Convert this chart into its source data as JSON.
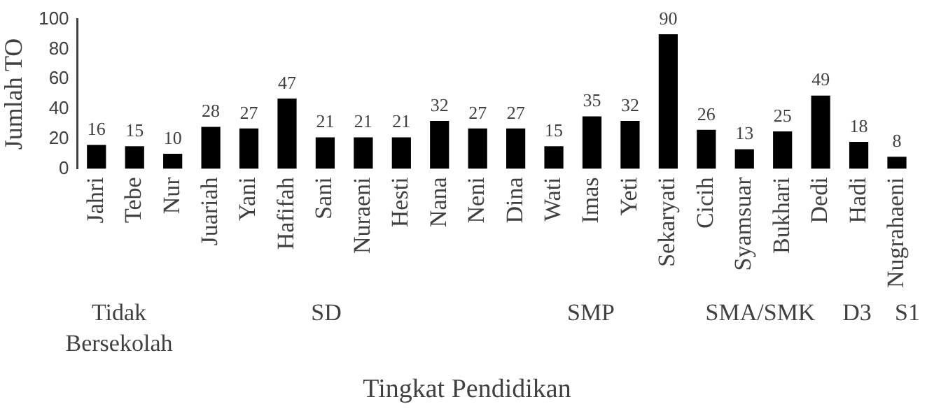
{
  "chart_data": {
    "type": "bar",
    "xlabel": "Tingkat Pendidikan",
    "ylabel": "Jumlah TO",
    "categories": [
      "Jahri",
      "Tebe",
      "Nur",
      "Juariah",
      "Yani",
      "Hafifah",
      "Sani",
      "Nuraeni",
      "Hesti",
      "Nana",
      "Neni",
      "Dina",
      "Wati",
      "Imas",
      "Yeti",
      "Sekaryati",
      "Cicih",
      "Syamsuar",
      "Bukhari",
      "Dedi",
      "Hadi",
      "Nugrahaeni"
    ],
    "values": [
      16,
      15,
      10,
      28,
      27,
      47,
      21,
      21,
      21,
      32,
      27,
      27,
      15,
      35,
      32,
      90,
      26,
      13,
      25,
      49,
      18,
      8
    ],
    "color": "#000000",
    "ylim": [
      0,
      100
    ],
    "yticks": [
      0,
      20,
      40,
      60,
      80,
      100
    ],
    "grid": false,
    "legend": false,
    "data_labels": true,
    "annotations": [
      "Tidak Bersekolah",
      "SD",
      "SMP",
      "SMA/SMK",
      "D3",
      "S1"
    ]
  }
}
